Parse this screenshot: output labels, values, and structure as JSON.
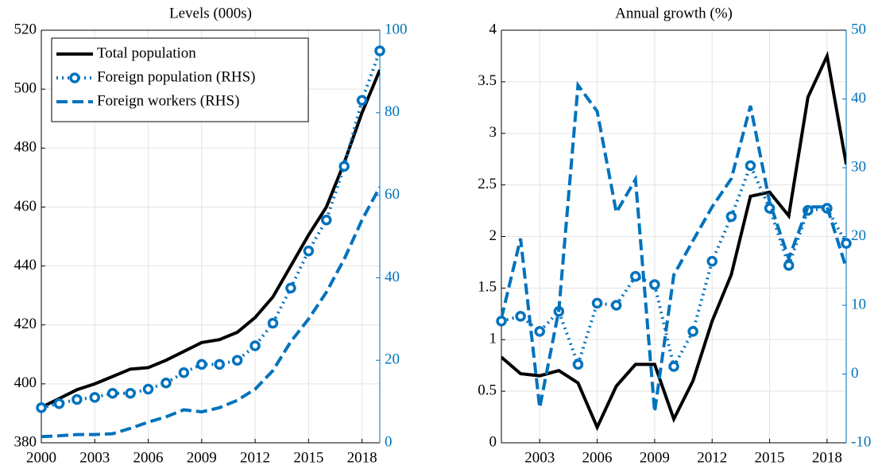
{
  "chart_data": [
    {
      "type": "line",
      "title": "Levels (000s)",
      "x": [
        2000,
        2001,
        2002,
        2003,
        2004,
        2005,
        2006,
        2007,
        2008,
        2009,
        2010,
        2011,
        2012,
        2013,
        2014,
        2015,
        2016,
        2017,
        2018,
        2019
      ],
      "xlim": [
        2000,
        2019
      ],
      "xticks": [
        2000,
        2003,
        2006,
        2009,
        2012,
        2015,
        2018
      ],
      "ylim": [
        380,
        520
      ],
      "yticks": [
        380,
        400,
        420,
        440,
        460,
        480,
        500,
        520
      ],
      "y2lim": [
        0,
        100
      ],
      "y2ticks": [
        0,
        20,
        40,
        60,
        80,
        100
      ],
      "grid": true,
      "legend": "upper left",
      "series": [
        {
          "name": "Total population",
          "color": "#000000",
          "line_style": "solid",
          "values": [
            392,
            395,
            398,
            400,
            402.5,
            405,
            405.5,
            408,
            411,
            414,
            415,
            417.5,
            422.5,
            429.5,
            440,
            450.5,
            460,
            475,
            492,
            506.5
          ]
        },
        {
          "name": "Foreign population (RHS)",
          "color": "#0072bd",
          "line_style": "dotted",
          "marker": "circle",
          "axis": "y2",
          "values": [
            8.5,
            9.5,
            10.5,
            11,
            12,
            12,
            13,
            14.5,
            17,
            19,
            19,
            20,
            23.5,
            29,
            37.5,
            46.5,
            54,
            67,
            83,
            95
          ]
        },
        {
          "name": "Foreign workers (RHS)",
          "color": "#0072bd",
          "line_style": "dashed",
          "axis": "y2",
          "values": [
            1.5,
            1.7,
            2,
            2,
            2.2,
            3.5,
            5,
            6.3,
            8,
            7.5,
            8.5,
            10.3,
            13,
            17.5,
            24.5,
            30,
            36.5,
            44.5,
            54,
            62
          ]
        }
      ]
    },
    {
      "type": "line",
      "title": "Annual growth (%)",
      "x": [
        2001,
        2002,
        2003,
        2004,
        2005,
        2006,
        2007,
        2008,
        2009,
        2010,
        2011,
        2012,
        2013,
        2014,
        2015,
        2016,
        2017,
        2018,
        2019
      ],
      "xlim": [
        2001,
        2019
      ],
      "xticks": [
        2003,
        2006,
        2009,
        2012,
        2015,
        2018
      ],
      "ylim": [
        0,
        4
      ],
      "yticks": [
        0,
        0.5,
        1,
        1.5,
        2,
        2.5,
        3,
        3.5,
        4
      ],
      "y2lim": [
        -10,
        50
      ],
      "y2ticks": [
        -10,
        0,
        10,
        20,
        30,
        40,
        50
      ],
      "grid": true,
      "series": [
        {
          "color": "#000000",
          "line_style": "solid",
          "values": [
            0.83,
            0.67,
            0.65,
            0.7,
            0.58,
            0.15,
            0.55,
            0.76,
            0.76,
            0.23,
            0.6,
            1.18,
            1.63,
            2.39,
            2.43,
            2.2,
            3.35,
            3.75,
            2.7
          ]
        },
        {
          "color": "#0072bd",
          "line_style": "dotted",
          "marker": "circle",
          "axis": "y2",
          "values": [
            7.7,
            8.4,
            6.2,
            9.1,
            1.4,
            10.3,
            10,
            14.2,
            13,
            1.1,
            6.2,
            16.4,
            22.9,
            30.3,
            24.1,
            15.8,
            23.8,
            24.1,
            19
          ]
        },
        {
          "color": "#0072bd",
          "line_style": "dashed",
          "axis": "y2",
          "values": [
            8.1,
            19.7,
            -4.9,
            9.3,
            42,
            38.2,
            23.5,
            28.3,
            -5.5,
            14.4,
            19.4,
            24.3,
            28.4,
            39,
            25,
            16.8,
            24.3,
            24.3,
            15.4
          ]
        }
      ]
    }
  ]
}
